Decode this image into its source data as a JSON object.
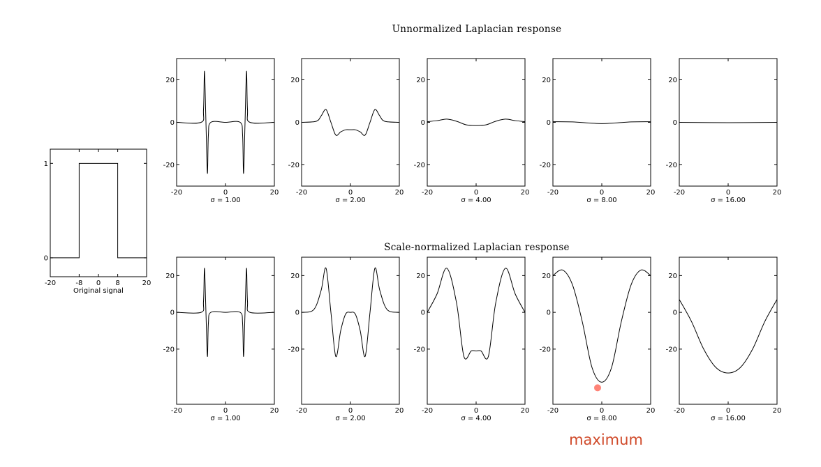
{
  "titles": {
    "top_row": "Unnormalized Laplacian response",
    "bottom_row": "Scale-normalized Laplacian response"
  },
  "annotation": {
    "text": "maximum",
    "color": "#d04a2a",
    "marker_color": "#ff5a4a",
    "x": 0,
    "y": -38
  },
  "chart_data": [
    {
      "type": "line",
      "id": "orig",
      "xlabel": "Original signal",
      "xlim": [
        -20,
        20
      ],
      "ylim": [
        -0.2,
        1.15
      ],
      "xticks": [
        -20,
        -8,
        0,
        8,
        20
      ],
      "yticks": [
        0,
        1
      ],
      "x": [
        -20,
        -8,
        -8,
        8,
        8,
        20
      ],
      "y": [
        0,
        0,
        1,
        1,
        0,
        0
      ]
    },
    {
      "type": "line",
      "id": "u1",
      "xlabel": "σ = 1.00",
      "xlim": [
        -20,
        20
      ],
      "ylim": [
        -30,
        30
      ],
      "xticks": [
        -20,
        0,
        20
      ],
      "yticks": [
        -20,
        0,
        20
      ],
      "x": [
        -20,
        -10,
        -9,
        -8.6,
        -8,
        -7.4,
        -7,
        -6,
        0,
        6,
        7,
        7.4,
        8,
        8.6,
        9,
        10,
        20
      ],
      "y": [
        0,
        0,
        6,
        24,
        0,
        -24,
        -6,
        0,
        0,
        0,
        -6,
        -24,
        0,
        24,
        6,
        0,
        0
      ]
    },
    {
      "type": "line",
      "id": "u2",
      "xlabel": "σ = 2.00",
      "xlim": [
        -20,
        20
      ],
      "ylim": [
        -30,
        30
      ],
      "xticks": [
        -20,
        0,
        20
      ],
      "yticks": [
        -20,
        0,
        20
      ],
      "x": [
        -20,
        -14,
        -12,
        -10,
        -8,
        -6,
        -4,
        -2,
        0,
        2,
        4,
        6,
        8,
        10,
        12,
        14,
        20
      ],
      "y": [
        0,
        0.5,
        3,
        6,
        0,
        -6,
        -4.5,
        -3.5,
        -3.5,
        -3.5,
        -4.5,
        -6,
        0,
        6,
        3,
        0.5,
        0
      ]
    },
    {
      "type": "line",
      "id": "u4",
      "xlabel": "σ = 4.00",
      "xlim": [
        -20,
        20
      ],
      "ylim": [
        -30,
        30
      ],
      "xticks": [
        -20,
        0,
        20
      ],
      "yticks": [
        -20,
        0,
        20
      ],
      "x": [
        -20,
        -16,
        -12,
        -8,
        -4,
        0,
        4,
        8,
        12,
        16,
        20
      ],
      "y": [
        0.3,
        0.8,
        1.5,
        0.5,
        -1.2,
        -1.5,
        -1.2,
        0.5,
        1.5,
        0.8,
        0.3
      ]
    },
    {
      "type": "line",
      "id": "u8",
      "xlabel": "σ = 8.00",
      "xlim": [
        -20,
        20
      ],
      "ylim": [
        -30,
        30
      ],
      "xticks": [
        -20,
        0,
        20
      ],
      "yticks": [
        -20,
        0,
        20
      ],
      "x": [
        -20,
        -12,
        0,
        12,
        20
      ],
      "y": [
        0.3,
        0.2,
        -0.6,
        0.2,
        0.3
      ]
    },
    {
      "type": "line",
      "id": "u16",
      "xlabel": "σ = 16.00",
      "xlim": [
        -20,
        20
      ],
      "ylim": [
        -30,
        30
      ],
      "xticks": [
        -20,
        0,
        20
      ],
      "yticks": [
        -20,
        0,
        20
      ],
      "x": [
        -20,
        0,
        20
      ],
      "y": [
        0,
        -0.15,
        0
      ]
    },
    {
      "type": "line",
      "id": "n1",
      "xlabel": "σ = 1.00",
      "xlim": [
        -20,
        20
      ],
      "ylim": [
        -50,
        30
      ],
      "xticks": [
        -20,
        0,
        20
      ],
      "yticks": [
        -20,
        0,
        20
      ],
      "x": [
        -20,
        -10,
        -9,
        -8.6,
        -8,
        -7.4,
        -7,
        -6,
        0,
        6,
        7,
        7.4,
        8,
        8.6,
        9,
        10,
        20
      ],
      "y": [
        0,
        0,
        6,
        24,
        0,
        -24,
        -6,
        0,
        0,
        0,
        -6,
        -24,
        0,
        24,
        6,
        0,
        0
      ]
    },
    {
      "type": "line",
      "id": "n2",
      "xlabel": "σ = 2.00",
      "xlim": [
        -20,
        20
      ],
      "ylim": [
        -50,
        30
      ],
      "xticks": [
        -20,
        0,
        20
      ],
      "yticks": [
        -20,
        0,
        20
      ],
      "x": [
        -20,
        -15,
        -12,
        -10,
        -8,
        -6,
        -4,
        -2,
        0,
        2,
        4,
        6,
        8,
        10,
        12,
        15,
        20
      ],
      "y": [
        0,
        1.5,
        12,
        24,
        0,
        -24,
        -10,
        -1,
        0,
        -1,
        -10,
        -24,
        0,
        24,
        12,
        1.5,
        0
      ]
    },
    {
      "type": "line",
      "id": "n4",
      "xlabel": "σ = 4.00",
      "xlim": [
        -20,
        20
      ],
      "ylim": [
        -50,
        30
      ],
      "xticks": [
        -20,
        0,
        20
      ],
      "yticks": [
        -20,
        0,
        20
      ],
      "x": [
        -20,
        -16,
        -12,
        -8,
        -5,
        -2,
        0,
        2,
        5,
        8,
        12,
        16,
        20
      ],
      "y": [
        0,
        10,
        24,
        5,
        -24,
        -21,
        -21,
        -21,
        -24,
        5,
        24,
        10,
        0
      ]
    },
    {
      "type": "line",
      "id": "n8",
      "xlabel": "σ = 8.00",
      "xlim": [
        -20,
        20
      ],
      "ylim": [
        -50,
        30
      ],
      "xticks": [
        -20,
        0,
        20
      ],
      "yticks": [
        -20,
        0,
        20
      ],
      "x": [
        -20,
        -16,
        -12,
        -8,
        -4,
        0,
        4,
        8,
        12,
        16,
        20
      ],
      "y": [
        20,
        23,
        15,
        -5,
        -30,
        -38,
        -30,
        -5,
        15,
        23,
        20
      ]
    },
    {
      "type": "line",
      "id": "n16",
      "xlabel": "σ = 16.00",
      "xlim": [
        -20,
        20
      ],
      "ylim": [
        -50,
        30
      ],
      "xticks": [
        -20,
        0,
        20
      ],
      "yticks": [
        -20,
        0,
        20
      ],
      "x": [
        -20,
        -15,
        -10,
        -5,
        0,
        5,
        10,
        15,
        20
      ],
      "y": [
        7,
        -5,
        -20,
        -30,
        -33,
        -30,
        -20,
        -5,
        7
      ]
    }
  ]
}
